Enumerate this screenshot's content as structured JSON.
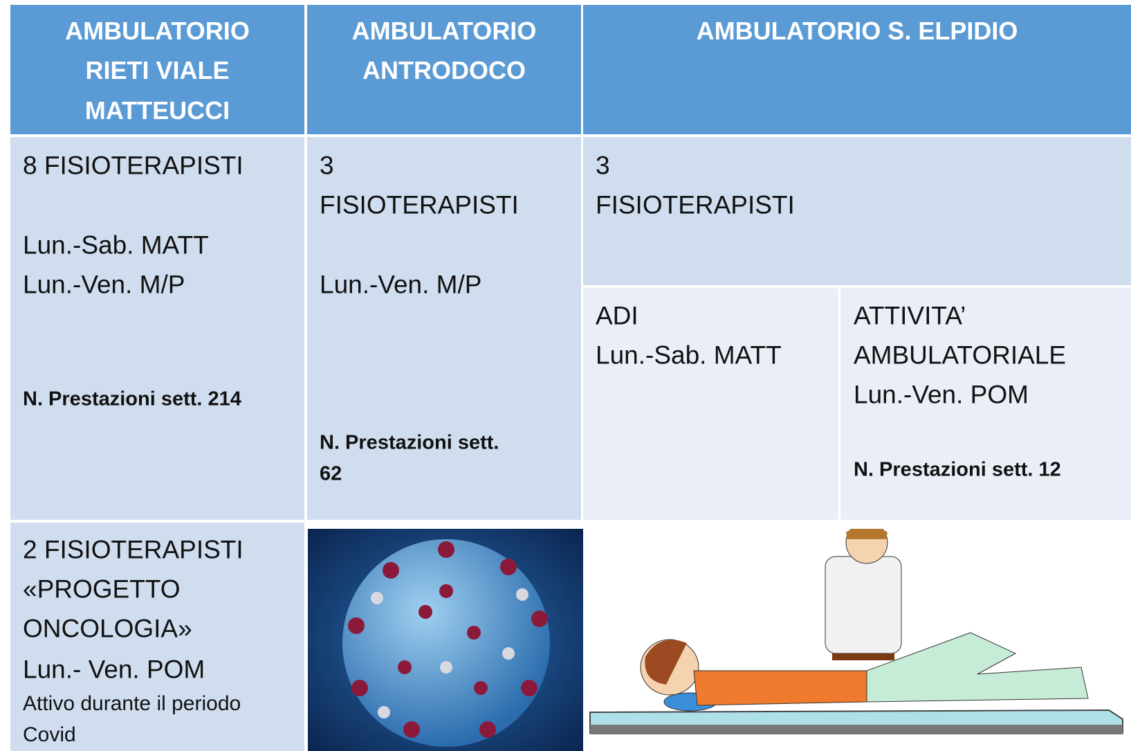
{
  "header": {
    "columns": [
      [
        "AMBULATORIO",
        "RIETI VIALE",
        "MATTEUCCI"
      ],
      [
        "AMBULATORIO",
        "ANTRODOCO"
      ],
      [
        "AMBULATORIO S. ELPIDIO"
      ]
    ]
  },
  "rieti": {
    "staff": "8 FISIOTERAPISTI",
    "schedule": [
      "Lun.-Sab.  MATT",
      "Lun.-Ven.  M/P"
    ],
    "services": "N. Prestazioni sett. 214"
  },
  "antrodoco": {
    "staff": [
      "3",
      "FISIOTERAPISTI"
    ],
    "schedule": "Lun.-Ven.  M/P",
    "services": [
      "N. Prestazioni sett.",
      "62"
    ]
  },
  "elpidio": {
    "staff": [
      "3",
      "FISIOTERAPISTI"
    ],
    "adi": [
      "ADI",
      "Lun.-Sab.  MATT"
    ],
    "outpatient": [
      "ATTIVITA’",
      "AMBULATORIALE",
      "Lun.-Ven. POM"
    ],
    "services": "N. Prestazioni sett. 12"
  },
  "oncology": {
    "lines": [
      "2 FISIOTERAPISTI",
      "«PROGETTO",
      "ONCOLOGIA»",
      "Lun.- Ven.  POM"
    ],
    "note": [
      "Attivo durante il periodo",
      "Covid"
    ]
  }
}
